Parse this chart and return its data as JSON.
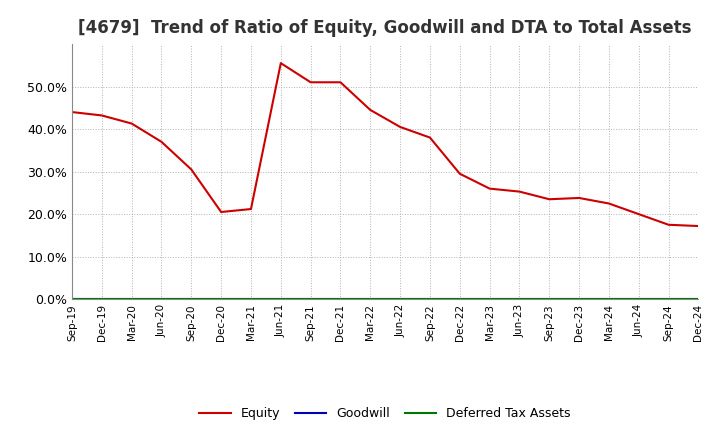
{
  "title": "[4679]  Trend of Ratio of Equity, Goodwill and DTA to Total Assets",
  "x_labels": [
    "Sep-19",
    "Dec-19",
    "Mar-20",
    "Jun-20",
    "Sep-20",
    "Dec-20",
    "Mar-21",
    "Jun-21",
    "Sep-21",
    "Dec-21",
    "Mar-22",
    "Jun-22",
    "Sep-22",
    "Dec-22",
    "Mar-23",
    "Jun-23",
    "Sep-23",
    "Dec-23",
    "Mar-24",
    "Jun-24",
    "Sep-24",
    "Dec-24"
  ],
  "equity": [
    0.44,
    0.432,
    0.413,
    0.37,
    0.305,
    0.205,
    0.212,
    0.555,
    0.51,
    0.51,
    0.445,
    0.405,
    0.38,
    0.295,
    0.26,
    0.253,
    0.235,
    0.238,
    0.225,
    0.2,
    0.175,
    0.172
  ],
  "goodwill": [
    0.0,
    0.0,
    0.0,
    0.0,
    0.0,
    0.0,
    0.0,
    0.0,
    0.0,
    0.0,
    0.0,
    0.0,
    0.0,
    0.0,
    0.0,
    0.0,
    0.0,
    0.0,
    0.0,
    0.0,
    0.0,
    0.0
  ],
  "dta": [
    0.0,
    0.0,
    0.0,
    0.0,
    0.0,
    0.0,
    0.0,
    0.0,
    0.0,
    0.0,
    0.0,
    0.0,
    0.0,
    0.0,
    0.0,
    0.0,
    0.0,
    0.0,
    0.0,
    0.0,
    0.0,
    0.0
  ],
  "equity_color": "#cc0000",
  "goodwill_color": "#0000bb",
  "dta_color": "#007700",
  "ylim": [
    0.0,
    0.6
  ],
  "yticks": [
    0.0,
    0.1,
    0.2,
    0.3,
    0.4,
    0.5
  ],
  "background_color": "#ffffff",
  "grid_color": "#aaaaaa",
  "title_fontsize": 12,
  "legend_labels": [
    "Equity",
    "Goodwill",
    "Deferred Tax Assets"
  ]
}
